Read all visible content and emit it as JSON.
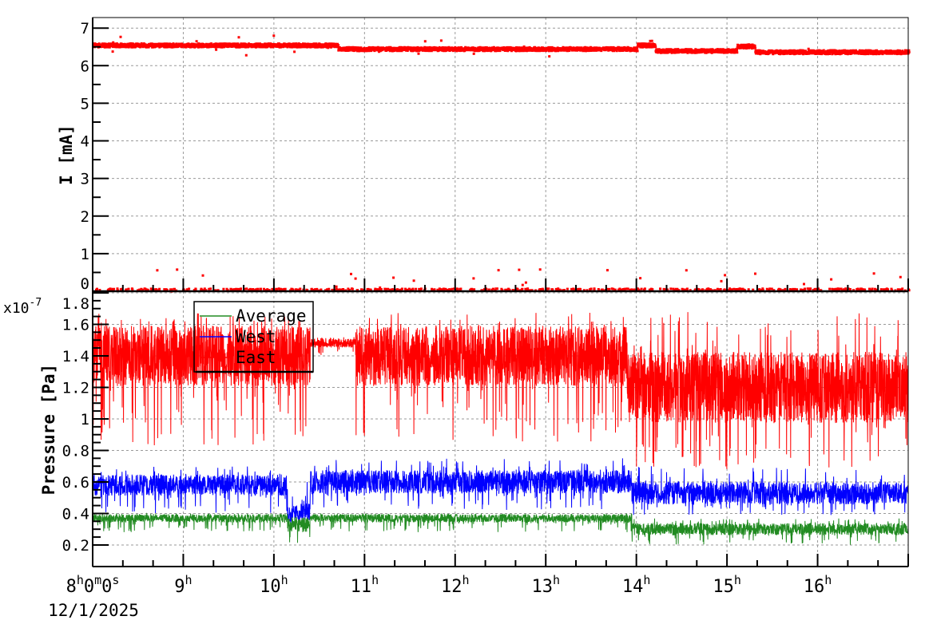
{
  "chart_data": [
    {
      "type": "scatter",
      "ylabel": "I [mA]",
      "ylim": [
        0,
        7.28
      ],
      "xlim_hours": [
        8,
        17
      ],
      "yticks": [
        "0",
        "1",
        "2",
        "3",
        "4",
        "5",
        "6",
        "7"
      ],
      "grid": true,
      "marker_color": "#ff0000",
      "series": [
        {
          "color": "#ff0000",
          "segments": [
            {
              "from": 8.0,
              "to": 10.7,
              "level": 6.55
            },
            {
              "from": 10.7,
              "to": 14.0,
              "level": 6.45
            },
            {
              "from": 14.0,
              "to": 14.2,
              "level": 6.55
            },
            {
              "from": 14.2,
              "to": 15.1,
              "level": 6.4
            },
            {
              "from": 15.1,
              "to": 15.3,
              "level": 6.52
            },
            {
              "from": 15.3,
              "to": 17.0,
              "level": 6.37
            }
          ],
          "near_zero_level": 0.03,
          "near_zero_outlier_max": 0.6
        }
      ]
    },
    {
      "type": "line",
      "ylabel": "Pressure [Pa]",
      "yscale_label": "x10",
      "yscale_exponent": "-7",
      "ylim": [
        0.063,
        1.81
      ],
      "yticks": [
        "0.2",
        "0.4",
        "0.6",
        "0.8",
        "1",
        "1.2",
        "1.4",
        "1.6",
        "1.8"
      ],
      "grid": true,
      "legend_position": "top-left",
      "series": [
        {
          "name": "Average",
          "color": "#228b22",
          "segments": [
            {
              "from": 8.0,
              "to": 10.15,
              "typical": 0.37,
              "low": 0.28,
              "high": 0.4
            },
            {
              "from": 10.15,
              "to": 10.4,
              "typical": 0.33,
              "low": 0.17,
              "high": 0.38
            },
            {
              "from": 10.4,
              "to": 13.95,
              "typical": 0.37,
              "low": 0.28,
              "high": 0.4
            },
            {
              "from": 13.95,
              "to": 17.0,
              "typical": 0.3,
              "low": 0.2,
              "high": 0.37
            }
          ]
        },
        {
          "name": "West",
          "color": "#0000ff",
          "segments": [
            {
              "from": 8.0,
              "to": 10.15,
              "typical": 0.58,
              "low": 0.4,
              "high": 0.7
            },
            {
              "from": 10.15,
              "to": 10.4,
              "typical": 0.4,
              "low": 0.32,
              "high": 0.6
            },
            {
              "from": 10.4,
              "to": 13.95,
              "typical": 0.6,
              "low": 0.42,
              "high": 0.75
            },
            {
              "from": 13.95,
              "to": 17.0,
              "typical": 0.53,
              "low": 0.38,
              "high": 0.7
            }
          ]
        },
        {
          "name": "East",
          "color": "#ff0000",
          "segments": [
            {
              "from": 8.0,
              "to": 10.4,
              "typical": 1.4,
              "low": 0.83,
              "high": 1.68
            },
            {
              "from": 10.4,
              "to": 10.9,
              "typical": 1.48,
              "low": 1.4,
              "high": 1.52
            },
            {
              "from": 10.9,
              "to": 13.9,
              "typical": 1.4,
              "low": 0.83,
              "high": 1.68
            },
            {
              "from": 13.9,
              "to": 17.0,
              "typical": 1.2,
              "low": 0.68,
              "high": 1.68
            }
          ]
        }
      ]
    }
  ],
  "xaxis": {
    "tick_labels": [
      {
        "hour": "8",
        "min": "0",
        "sec": "0"
      },
      {
        "hour": "9"
      },
      {
        "hour": "10"
      },
      {
        "hour": "11"
      },
      {
        "hour": "12"
      },
      {
        "hour": "13"
      },
      {
        "hour": "14"
      },
      {
        "hour": "15"
      },
      {
        "hour": "16"
      }
    ],
    "date": "12/1/2025"
  }
}
